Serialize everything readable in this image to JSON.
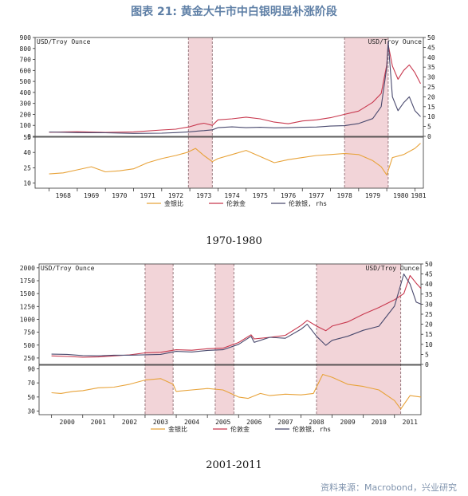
{
  "figure_title": "图表 21: 黄金大牛市中白银明显补涨阶段",
  "source": "资料来源：Macrobond，兴业研究",
  "colors": {
    "ratio": "#e8a33a",
    "gold": "#c8384e",
    "silver": "#4a4a6e",
    "shade": "#f2d4d8",
    "shade_edge": "#9a7a80"
  },
  "chart_data": [
    {
      "type": "line",
      "caption": "1970-1980",
      "left_axis_label": "USD/Troy Ounce",
      "right_axis_label": "USD/Troy Ounce",
      "x_range": [
        1967.5,
        1981.3
      ],
      "x_ticks": [
        "1968",
        "1969",
        "1970",
        "1971",
        "1972",
        "1973",
        "1974",
        "1975",
        "1976",
        "1977",
        "1978",
        "1979",
        "1980",
        "1981"
      ],
      "top_ylim": [
        0,
        900
      ],
      "top_yticks": [
        0,
        100,
        200,
        300,
        400,
        500,
        600,
        700,
        800,
        900
      ],
      "right_ylim": [
        0,
        50
      ],
      "right_yticks": [
        0,
        5,
        10,
        15,
        20,
        25,
        30,
        35,
        40,
        45,
        50
      ],
      "bottom_ylim": [
        5,
        55
      ],
      "bottom_yticks": [
        10,
        25,
        40,
        55
      ],
      "shaded_periods": [
        [
          1972.95,
          1973.8
        ],
        [
          1978.5,
          1980.05
        ]
      ],
      "legend": [
        "金银比",
        "伦敦金",
        "伦敦银, rhs"
      ],
      "series": [
        {
          "name": "伦敦金",
          "panel": "top",
          "axis": "left",
          "x": [
            1968,
            1969,
            1970,
            1971,
            1972,
            1972.5,
            1973,
            1973.3,
            1973.5,
            1973.8,
            1974,
            1974.5,
            1975,
            1975.5,
            1976,
            1976.5,
            1977,
            1977.5,
            1978,
            1978.5,
            1979,
            1979.5,
            1979.8,
            1980.0,
            1980.05,
            1980.2,
            1980.4,
            1980.6,
            1980.8,
            1981,
            1981.2
          ],
          "values": [
            38,
            42,
            36,
            41,
            58,
            65,
            88,
            110,
            120,
            100,
            150,
            160,
            175,
            160,
            130,
            115,
            140,
            150,
            170,
            200,
            230,
            310,
            390,
            650,
            835,
            640,
            520,
            600,
            650,
            580,
            480
          ]
        },
        {
          "name": "伦敦银, rhs",
          "panel": "top",
          "axis": "right",
          "x": [
            1968,
            1969,
            1970,
            1971,
            1972,
            1972.5,
            1973,
            1973.3,
            1973.5,
            1973.8,
            1974,
            1974.5,
            1975,
            1975.5,
            1976,
            1976.5,
            1977,
            1977.5,
            1978,
            1978.5,
            1979,
            1979.5,
            1979.8,
            1980.0,
            1980.05,
            1980.2,
            1980.4,
            1980.6,
            1980.8,
            1981,
            1981.2
          ],
          "values": [
            2.2,
            1.9,
            1.8,
            1.5,
            1.6,
            1.9,
            2.3,
            2.7,
            2.9,
            3.3,
            4.4,
            4.8,
            4.4,
            4.6,
            4.3,
            4.4,
            4.6,
            4.7,
            5.2,
            5.4,
            6.5,
            9.0,
            15,
            35,
            48,
            20,
            13,
            17,
            20,
            13,
            10
          ]
        },
        {
          "name": "金银比",
          "panel": "bottom",
          "axis": "left",
          "x": [
            1968,
            1968.5,
            1969,
            1969.5,
            1970,
            1970.5,
            1971,
            1971.5,
            1972,
            1972.5,
            1972.9,
            1973.2,
            1973.5,
            1973.8,
            1974,
            1974.5,
            1975,
            1975.5,
            1976,
            1976.5,
            1977,
            1977.5,
            1978,
            1978.5,
            1979,
            1979.5,
            1979.8,
            1980,
            1980.2,
            1980.6,
            1981,
            1981.2
          ],
          "values": [
            19,
            20,
            23,
            26,
            21,
            22,
            24,
            30,
            34,
            37,
            40,
            44,
            37,
            31,
            34,
            38,
            42,
            36,
            30,
            33,
            35,
            37,
            38,
            39,
            38,
            32,
            26,
            18,
            35,
            38,
            44,
            49
          ]
        }
      ]
    },
    {
      "type": "line",
      "caption": "2001-2011",
      "left_axis_label": "USD/Troy Ounce",
      "right_axis_label": "USD/Troy Ounce",
      "x_range": [
        1999.6,
        2011.85
      ],
      "x_ticks": [
        "2000",
        "2001",
        "2002",
        "2003",
        "2004",
        "2005",
        "2006",
        "2007",
        "2008",
        "2009",
        "2010",
        "2011"
      ],
      "top_ylim": [
        125,
        2075
      ],
      "top_yticks": [
        250,
        500,
        750,
        1000,
        1250,
        1500,
        1750,
        2000
      ],
      "right_ylim": [
        0,
        50
      ],
      "right_yticks": [
        0,
        5,
        10,
        15,
        20,
        25,
        30,
        35,
        40,
        45,
        50
      ],
      "bottom_ylim": [
        25,
        95
      ],
      "bottom_yticks": [
        30,
        50,
        70,
        90
      ],
      "shaded_periods": [
        [
          2003.0,
          2003.9
        ],
        [
          2005.25,
          2005.85
        ],
        [
          2008.5,
          2011.2
        ]
      ],
      "legend": [
        "金银比",
        "伦敦金",
        "伦敦银, rhs"
      ],
      "series": [
        {
          "name": "伦敦金",
          "panel": "top",
          "axis": "left",
          "x": [
            2000,
            2000.5,
            2001,
            2001.5,
            2002,
            2002.5,
            2003,
            2003.5,
            2004,
            2004.5,
            2005,
            2005.5,
            2006,
            2006.4,
            2006.5,
            2007,
            2007.5,
            2008,
            2008.2,
            2008.5,
            2008.8,
            2009,
            2009.5,
            2010,
            2010.5,
            2011,
            2011.3,
            2011.5,
            2011.7,
            2011.85
          ],
          "values": [
            290,
            280,
            265,
            270,
            290,
            310,
            350,
            360,
            410,
            400,
            430,
            440,
            550,
            700,
            620,
            650,
            690,
            880,
            980,
            870,
            780,
            870,
            950,
            1100,
            1230,
            1380,
            1500,
            1850,
            1700,
            1600
          ]
        },
        {
          "name": "伦敦银, rhs",
          "panel": "top",
          "axis": "right",
          "x": [
            2000,
            2000.5,
            2001,
            2001.5,
            2002,
            2002.5,
            2003,
            2003.5,
            2004,
            2004.5,
            2005,
            2005.5,
            2006,
            2006.4,
            2006.5,
            2007,
            2007.5,
            2008,
            2008.2,
            2008.5,
            2008.8,
            2009,
            2009.5,
            2010,
            2010.5,
            2011,
            2011.3,
            2011.5,
            2011.7,
            2011.85
          ],
          "values": [
            5.1,
            5.0,
            4.4,
            4.3,
            4.6,
            4.6,
            4.8,
            5.0,
            6.5,
            6.2,
            7.0,
            7.3,
            10,
            14,
            11,
            13.5,
            13,
            17.5,
            20,
            14,
            9.5,
            12,
            14,
            17,
            19,
            29,
            45,
            40,
            31,
            30
          ]
        },
        {
          "name": "金银比",
          "panel": "bottom",
          "axis": "left",
          "x": [
            2000,
            2000.3,
            2000.7,
            2001,
            2001.5,
            2002,
            2002.5,
            2003,
            2003.5,
            2003.9,
            2004,
            2004.5,
            2005,
            2005.5,
            2005.8,
            2006,
            2006.3,
            2006.7,
            2007,
            2007.5,
            2008,
            2008.4,
            2008.7,
            2009,
            2009.5,
            2010,
            2010.5,
            2011,
            2011.2,
            2011.5,
            2011.85
          ],
          "values": [
            56,
            55,
            58,
            59,
            63,
            64,
            68,
            74,
            76,
            68,
            58,
            60,
            62,
            60,
            54,
            50,
            48,
            55,
            52,
            54,
            53,
            55,
            82,
            78,
            68,
            65,
            60,
            45,
            33,
            52,
            50
          ]
        }
      ]
    }
  ]
}
